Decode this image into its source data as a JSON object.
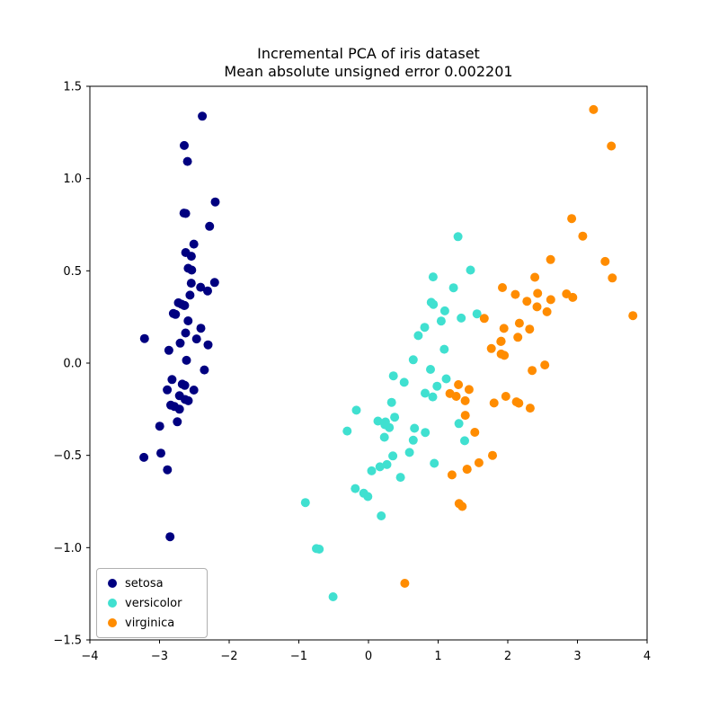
{
  "chart_data": {
    "type": "scatter",
    "title": "Incremental PCA of iris dataset\nMean absolute unsigned error 0.002201",
    "title_lines": [
      "Incremental PCA of iris dataset",
      "Mean absolute unsigned error 0.002201"
    ],
    "xlabel": "",
    "ylabel": "",
    "xlim": [
      -4,
      4
    ],
    "ylim": [
      -1.5,
      1.5
    ],
    "xticks": [
      -4,
      -3,
      -2,
      -1,
      0,
      1,
      2,
      3,
      4
    ],
    "yticks": [
      -1.5,
      -1.0,
      -0.5,
      0.0,
      0.5,
      1.0,
      1.5
    ],
    "xtick_labels": [
      "−4",
      "−3",
      "−2",
      "−1",
      "0",
      "1",
      "2",
      "3",
      "4"
    ],
    "ytick_labels": [
      "−1.5",
      "−1.0",
      "−0.5",
      "0.0",
      "0.5",
      "1.0",
      "1.5"
    ],
    "grid": false,
    "legend_position": "lower left",
    "marker_radius": 5,
    "frame_color": "#000000",
    "series": [
      {
        "name": "setosa",
        "color": "#000080",
        "points": [
          [
            -2.684,
            0.319
          ],
          [
            -2.714,
            -0.177
          ],
          [
            -2.889,
            -0.145
          ],
          [
            -2.745,
            -0.318
          ],
          [
            -2.729,
            0.327
          ],
          [
            -2.281,
            0.741
          ],
          [
            -2.821,
            -0.089
          ],
          [
            -2.626,
            0.163
          ],
          [
            -2.886,
            -0.578
          ],
          [
            -2.673,
            -0.114
          ],
          [
            -2.507,
            0.645
          ],
          [
            -2.613,
            0.015
          ],
          [
            -2.786,
            -0.235
          ],
          [
            -3.224,
            -0.511
          ],
          [
            -2.645,
            1.179
          ],
          [
            -2.386,
            1.338
          ],
          [
            -2.624,
            0.811
          ],
          [
            -2.648,
            0.312
          ],
          [
            -2.2,
            0.873
          ],
          [
            -2.588,
            0.514
          ],
          [
            -2.31,
            0.391
          ],
          [
            -2.544,
            0.433
          ],
          [
            -3.216,
            0.133
          ],
          [
            -2.303,
            0.099
          ],
          [
            -2.356,
            -0.037
          ],
          [
            -2.507,
            -0.146
          ],
          [
            -2.469,
            0.131
          ],
          [
            -2.562,
            0.368
          ],
          [
            -2.64,
            0.312
          ],
          [
            -2.632,
            -0.197
          ],
          [
            -2.587,
            -0.204
          ],
          [
            -2.41,
            0.411
          ],
          [
            -2.649,
            0.813
          ],
          [
            -2.599,
            1.093
          ],
          [
            -2.637,
            -0.121
          ],
          [
            -2.866,
            0.069
          ],
          [
            -2.625,
            0.599
          ],
          [
            -2.801,
            0.269
          ],
          [
            -2.981,
            -0.488
          ],
          [
            -2.59,
            0.229
          ],
          [
            -2.77,
            0.264
          ],
          [
            -2.849,
            -0.941
          ],
          [
            -2.997,
            -0.342
          ],
          [
            -2.406,
            0.189
          ],
          [
            -2.209,
            0.437
          ],
          [
            -2.714,
            -0.25
          ],
          [
            -2.538,
            0.504
          ],
          [
            -2.839,
            -0.228
          ],
          [
            -2.543,
            0.579
          ],
          [
            -2.703,
            0.108
          ]
        ]
      },
      {
        "name": "versicolor",
        "color": "#40E0D0",
        "points": [
          [
            1.285,
            0.685
          ],
          [
            0.932,
            0.318
          ],
          [
            1.464,
            0.504
          ],
          [
            0.183,
            -0.828
          ],
          [
            1.088,
            0.075
          ],
          [
            0.642,
            -0.418
          ],
          [
            1.095,
            0.283
          ],
          [
            -0.749,
            -1.005
          ],
          [
            1.044,
            0.228
          ],
          [
            -0.009,
            -0.723
          ],
          [
            -0.508,
            -1.266
          ],
          [
            0.512,
            -0.104
          ],
          [
            0.265,
            -0.55
          ],
          [
            0.985,
            -0.125
          ],
          [
            -0.174,
            -0.255
          ],
          [
            0.928,
            0.467
          ],
          [
            0.66,
            -0.353
          ],
          [
            0.236,
            -0.334
          ],
          [
            0.945,
            -0.543
          ],
          [
            0.045,
            -0.584
          ],
          [
            1.116,
            -0.085
          ],
          [
            0.358,
            -0.069
          ],
          [
            1.298,
            -0.328
          ],
          [
            0.922,
            -0.183
          ],
          [
            0.715,
            0.149
          ],
          [
            0.9,
            0.329
          ],
          [
            1.332,
            0.244
          ],
          [
            1.558,
            0.267
          ],
          [
            0.813,
            -0.163
          ],
          [
            -0.306,
            -0.368
          ],
          [
            -0.068,
            -0.705
          ],
          [
            -0.19,
            -0.68
          ],
          [
            0.136,
            -0.314
          ],
          [
            1.38,
            -0.421
          ],
          [
            0.588,
            -0.484
          ],
          [
            0.807,
            0.194
          ],
          [
            1.221,
            0.408
          ],
          [
            0.815,
            -0.376
          ],
          [
            0.244,
            -0.319
          ],
          [
            0.164,
            -0.562
          ],
          [
            0.46,
            -0.619
          ],
          [
            0.89,
            -0.034
          ],
          [
            0.229,
            -0.402
          ],
          [
            -0.707,
            -1.008
          ],
          [
            0.35,
            -0.503
          ],
          [
            0.332,
            -0.213
          ],
          [
            0.376,
            -0.293
          ],
          [
            0.643,
            0.018
          ],
          [
            -0.906,
            -0.756
          ],
          [
            0.299,
            -0.349
          ]
        ]
      },
      {
        "name": "virginica",
        "color": "#FF8C00",
        "points": [
          [
            2.531,
            -0.01
          ],
          [
            1.415,
            -0.575
          ],
          [
            2.617,
            0.344
          ],
          [
            1.972,
            -0.18
          ],
          [
            2.35,
            -0.04
          ],
          [
            3.397,
            0.551
          ],
          [
            0.521,
            -1.193
          ],
          [
            2.933,
            0.356
          ],
          [
            2.321,
            -0.244
          ],
          [
            2.917,
            0.783
          ],
          [
            1.662,
            0.242
          ],
          [
            1.803,
            -0.216
          ],
          [
            2.166,
            0.216
          ],
          [
            1.346,
            -0.777
          ],
          [
            1.586,
            -0.54
          ],
          [
            1.904,
            0.119
          ],
          [
            1.95,
            0.042
          ],
          [
            3.487,
            1.176
          ],
          [
            3.796,
            0.257
          ],
          [
            1.301,
            -0.761
          ],
          [
            2.428,
            0.378
          ],
          [
            1.199,
            -0.606
          ],
          [
            3.5,
            0.461
          ],
          [
            1.389,
            -0.204
          ],
          [
            2.275,
            0.335
          ],
          [
            2.614,
            0.561
          ],
          [
            1.259,
            -0.18
          ],
          [
            1.291,
            -0.117
          ],
          [
            2.124,
            -0.21
          ],
          [
            2.388,
            0.465
          ],
          [
            2.842,
            0.375
          ],
          [
            3.231,
            1.374
          ],
          [
            2.159,
            -0.217
          ],
          [
            1.444,
            -0.143
          ],
          [
            1.781,
            -0.5
          ],
          [
            3.076,
            0.688
          ],
          [
            2.144,
            0.14
          ],
          [
            1.905,
            0.049
          ],
          [
            1.169,
            -0.165
          ],
          [
            2.108,
            0.372
          ],
          [
            2.314,
            0.184
          ],
          [
            1.922,
            0.409
          ],
          [
            1.415,
            -0.575
          ],
          [
            2.563,
            0.278
          ],
          [
            2.419,
            0.305
          ],
          [
            1.944,
            0.188
          ],
          [
            1.527,
            -0.375
          ],
          [
            1.764,
            0.079
          ],
          [
            1.901,
            0.117
          ],
          [
            1.39,
            -0.283
          ]
        ]
      }
    ]
  },
  "legend": {
    "items": [
      {
        "label": "setosa"
      },
      {
        "label": "versicolor"
      },
      {
        "label": "virginica"
      }
    ]
  }
}
